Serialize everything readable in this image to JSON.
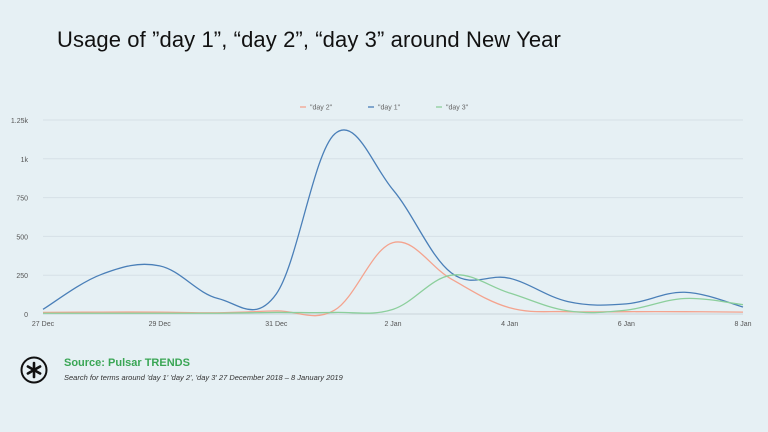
{
  "chart_data": {
    "type": "line",
    "title": "Usage of ”day 1”, “day 2”, “day 3” around New Year",
    "x": [
      "27 Dec",
      "28 Dec",
      "29 Dec",
      "30 Dec",
      "31 Dec",
      "1 Jan",
      "2 Jan",
      "3 Jan",
      "4 Jan",
      "5 Jan",
      "6 Jan",
      "7 Jan",
      "8 Jan"
    ],
    "x_tick_labels": [
      "27 Dec",
      "29 Dec",
      "31 Dec",
      "2 Jan",
      "4 Jan",
      "6 Jan",
      "8 Jan"
    ],
    "y_tick_labels": [
      "0",
      "250",
      "500",
      "750",
      "1k",
      "1.25k"
    ],
    "ylim": [
      0,
      1250
    ],
    "grid": true,
    "legend_position": "top-center",
    "series": [
      {
        "name": "\"day 2\"",
        "color": "#f4a38e",
        "values": [
          10,
          12,
          12,
          8,
          20,
          25,
          460,
          225,
          40,
          15,
          15,
          15,
          12
        ]
      },
      {
        "name": "\"day 1\"",
        "color": "#4a7fb8",
        "values": [
          30,
          255,
          310,
          100,
          130,
          1160,
          800,
          265,
          230,
          80,
          65,
          140,
          45
        ]
      },
      {
        "name": "\"day 3\"",
        "color": "#8ccf9c",
        "values": [
          5,
          5,
          5,
          5,
          10,
          10,
          30,
          250,
          135,
          20,
          25,
          100,
          60
        ]
      }
    ]
  },
  "source": "Source: Pulsar TRENDS",
  "caption": "Search for terms around 'day 1' 'day 2', 'day 3' 27 December 2018 – 8 January 2019"
}
